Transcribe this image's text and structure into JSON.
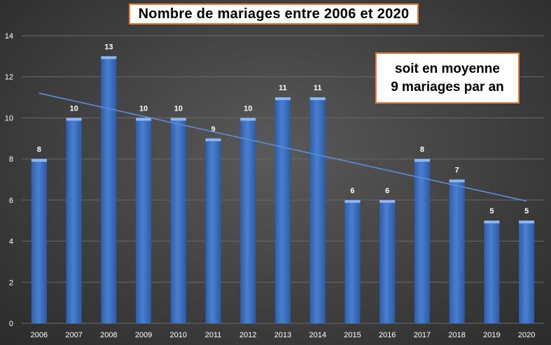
{
  "chart_data": {
    "type": "bar",
    "title": "Nombre de mariages entre 2006 et 2020",
    "annotation": [
      "soit en moyenne",
      "9 mariages par an"
    ],
    "categories": [
      "2006",
      "2007",
      "2008",
      "2009",
      "2010",
      "2011",
      "2012",
      "2013",
      "2014",
      "2015",
      "2016",
      "2017",
      "2018",
      "2019",
      "2020"
    ],
    "values": [
      8,
      10,
      13,
      10,
      10,
      9,
      10,
      11,
      11,
      6,
      6,
      8,
      7,
      5,
      5
    ],
    "ylim": [
      0,
      14
    ],
    "yticks": [
      0,
      2,
      4,
      6,
      8,
      10,
      12,
      14
    ],
    "xlabel": "",
    "ylabel": "",
    "grid": true,
    "data_labels": true,
    "trendline": {
      "type": "linear",
      "start": 11.2,
      "end": 5.95
    },
    "colors": {
      "bar": "#4a7fd0",
      "bar_light": "#8fb6ee",
      "trendline": "#5b8fd6",
      "grid": "#6a6a6a",
      "text": "#ffffff",
      "box_border": "#ed7d31"
    }
  }
}
